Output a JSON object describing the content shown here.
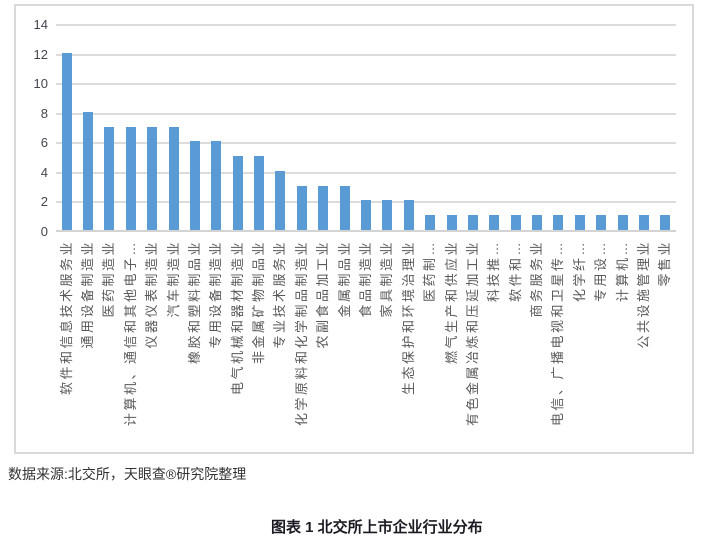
{
  "chart_data": {
    "type": "bar",
    "title": "",
    "xlabel": "",
    "ylabel": "",
    "categories": [
      "软件和信息技术服务业",
      "通用设备制造业",
      "医药制造业",
      "计算机、通信和其他电子…",
      "仪器仪表制造业",
      "汽车制造业",
      "橡胶和塑料制品业",
      "专用设备制造业",
      "电气机械和器材制造业",
      "非金属矿物制品业",
      "专业技术服务业",
      "化学原料和化学制品制造业",
      "农副食品加工业",
      "金属制品业",
      "食品制造业",
      "家具制造业",
      "生态保护和环境治理业",
      "医药制…",
      "燃气生产和供应业",
      "有色金属冶炼和压延加工业",
      "科技推…",
      "软件和…",
      "商务服务业",
      "电信、广播电视和卫星传…",
      "化学纤…",
      "专用设…",
      "计算机…",
      "公共设施管理业",
      "零售业"
    ],
    "values": [
      12,
      8,
      7,
      7,
      7,
      7,
      6,
      6,
      5,
      5,
      4,
      3,
      3,
      3,
      2,
      2,
      2,
      1,
      1,
      1,
      1,
      1,
      1,
      1,
      1,
      1,
      1,
      1,
      1
    ],
    "ylim": [
      0,
      14
    ],
    "yticks": [
      0,
      2,
      4,
      6,
      8,
      10,
      12,
      14
    ],
    "grid": true,
    "legend_position": "none",
    "bar_color": "#5b9bd5",
    "gridline_color": "#d9d9d9"
  },
  "source_note": "数据来源:北交所，天眼查®研究院整理",
  "caption": "图表 1 北交所上市企业行业分布"
}
